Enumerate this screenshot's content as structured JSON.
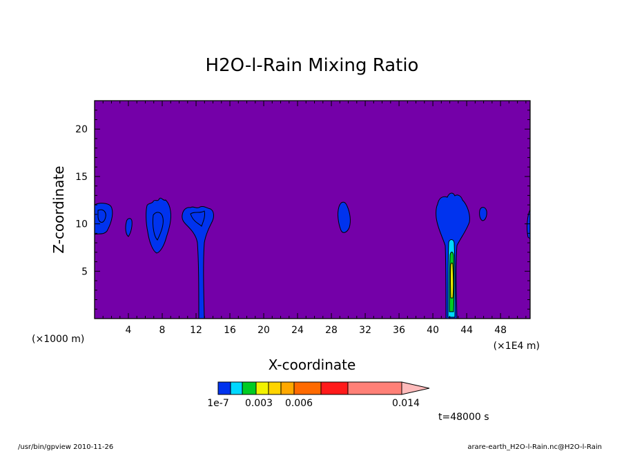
{
  "chart_data": {
    "type": "contour",
    "title": "H2O-l-Rain Mixing Ratio",
    "xlabel": "X-coordinate",
    "ylabel": "Z-coordinate",
    "x_unit_left": "(×1000 m)",
    "x_unit_right": "(×1E4 m)",
    "xlim": [
      0,
      51.5
    ],
    "ylim": [
      0,
      23
    ],
    "x_ticks": [
      4,
      8,
      12,
      16,
      20,
      24,
      28,
      32,
      36,
      40,
      44,
      48
    ],
    "y_ticks": [
      5,
      10,
      15,
      20
    ],
    "background_color": "#7400A8",
    "colorbar": {
      "levels": [
        "1e-7",
        "0.003",
        "0.006",
        "0.014"
      ],
      "colors": [
        "#0033EE",
        "#00D8FF",
        "#00CC22",
        "#F2F200",
        "#FFD400",
        "#FFA800",
        "#FF6A00",
        "#FF1A1A",
        "#FF8077",
        "#FFBBBB"
      ]
    },
    "regions": [
      {
        "name": "left-edge-cloud",
        "x": 1.0,
        "z": 10.5
      },
      {
        "name": "cloud-5km",
        "x": 4.0,
        "z": 9.5
      },
      {
        "name": "cloud-7km",
        "x": 7.8,
        "z": 10.0
      },
      {
        "name": "rain-shaft-12km",
        "x": 12.6,
        "z": 8.0
      },
      {
        "name": "cloud-29km",
        "x": 29.5,
        "z": 10.5
      },
      {
        "name": "rain-shaft-42km",
        "x": 42.0,
        "z": 8.0
      },
      {
        "name": "cloud-46km",
        "x": 45.8,
        "z": 11.0
      }
    ],
    "time_label": "t=48000 s"
  },
  "footer": {
    "left": "/usr/bin/gpview  2010-11-26",
    "right": "arare-earth_H2O-l-Rain.nc@H2O-l-Rain"
  }
}
